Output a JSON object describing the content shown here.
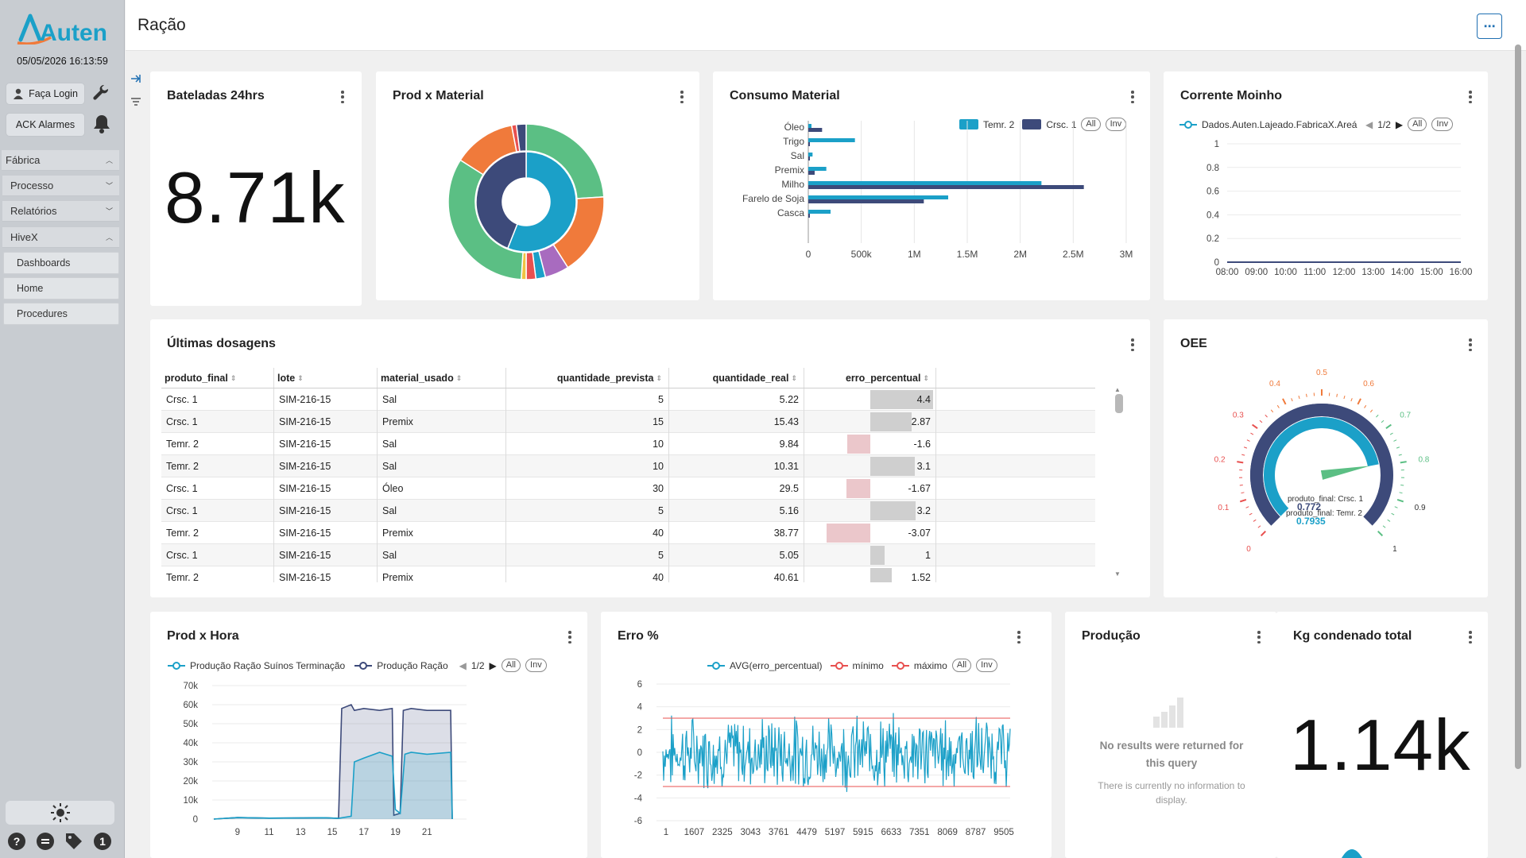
{
  "app": {
    "logo": "Auten",
    "datetime": "05/05/2026 16:13:59",
    "login_label": "Faça Login",
    "ack_label": "ACK Alarmes",
    "page_title": "Ração",
    "nav": [
      {
        "label": "Fábrica"
      },
      {
        "label": "Processo"
      },
      {
        "label": "Relatórios"
      },
      {
        "label": "HiveX"
      }
    ],
    "hivex_children": [
      "Dashboards",
      "Home",
      "Procedures"
    ],
    "footer_badge": "1"
  },
  "panels": {
    "bateladas": {
      "title": "Bateladas 24hrs",
      "value": "8.71k"
    },
    "prod_material": {
      "title": "Prod x Material"
    },
    "consumo": {
      "title": "Consumo Material",
      "legend": [
        "Temr. 2",
        "Crsc. 1"
      ],
      "all": "All",
      "inv": "Inv"
    },
    "corrente": {
      "title": "Corrente Moinho",
      "legend": "Dados.Auten.Lajeado.FabricaX.Areá",
      "page": "1/2",
      "all": "All",
      "inv": "Inv"
    },
    "ultimas": {
      "title": "Últimas dosagens"
    },
    "oee": {
      "title": "OEE",
      "label1": "produto_final: Crsc. 1",
      "val1": "0.772",
      "label2": "produto_final: Temr. 2",
      "val2": "0.7935"
    },
    "prod_hora": {
      "title": "Prod x Hora",
      "legend": [
        "Produção Ração Suínos Terminação",
        "Produção Ração"
      ],
      "page": "1/2",
      "all": "All",
      "inv": "Inv"
    },
    "erro": {
      "title": "Erro %",
      "legend": [
        "AVG(erro_percentual)",
        "mínimo",
        "máximo"
      ],
      "all": "All",
      "inv": "Inv"
    },
    "producao": {
      "title": "Produção",
      "nores": "No results were returned for this query",
      "nores2": "There is currently no information to display."
    },
    "kg": {
      "title": "Kg condenado total",
      "value": "1.14k"
    }
  },
  "table": {
    "columns": [
      "produto_final",
      "lote",
      "material_usado",
      "quantidade_prevista",
      "quantidade_real",
      "erro_percentual"
    ],
    "rows": [
      [
        "Crsc. 1",
        "SIM-216-15",
        "Sal",
        "5",
        "5.22",
        "4.4"
      ],
      [
        "Crsc. 1",
        "SIM-216-15",
        "Premix",
        "15",
        "15.43",
        "2.87"
      ],
      [
        "Temr. 2",
        "SIM-216-15",
        "Sal",
        "10",
        "9.84",
        "-1.6"
      ],
      [
        "Temr. 2",
        "SIM-216-15",
        "Sal",
        "10",
        "10.31",
        "3.1"
      ],
      [
        "Crsc. 1",
        "SIM-216-15",
        "Óleo",
        "30",
        "29.5",
        "-1.67"
      ],
      [
        "Crsc. 1",
        "SIM-216-15",
        "Sal",
        "5",
        "5.16",
        "3.2"
      ],
      [
        "Temr. 2",
        "SIM-216-15",
        "Premix",
        "40",
        "38.77",
        "-3.07"
      ],
      [
        "Crsc. 1",
        "SIM-216-15",
        "Sal",
        "5",
        "5.05",
        "1"
      ],
      [
        "Temr. 2",
        "SIM-216-15",
        "Premix",
        "40",
        "40.61",
        "1.52"
      ]
    ]
  },
  "chart_data": [
    {
      "type": "pie",
      "title": "Prod x Material",
      "note": "sunburst",
      "inner": [
        {
          "value": 0.56,
          "color": "#1ba0c8"
        },
        {
          "value": 0.44,
          "color": "#3d4a7a"
        }
      ],
      "outer": [
        {
          "value": 0.24,
          "color": "#5bbf84"
        },
        {
          "value": 0.17,
          "color": "#f07a3b"
        },
        {
          "value": 0.05,
          "color": "#a86bbf"
        },
        {
          "value": 0.02,
          "color": "#1ba0c8"
        },
        {
          "value": 0.02,
          "color": "#e8504f"
        },
        {
          "value": 0.01,
          "color": "#efc342"
        },
        {
          "value": 0.33,
          "color": "#5bbf84"
        },
        {
          "value": 0.13,
          "color": "#f07a3b"
        },
        {
          "value": 0.01,
          "color": "#e8504f"
        },
        {
          "value": 0.02,
          "color": "#3d4a7a"
        }
      ]
    },
    {
      "type": "bar",
      "orientation": "horizontal",
      "title": "Consumo Material",
      "categories": [
        "Óleo",
        "Trigo",
        "Sal",
        "Premix",
        "Milho",
        "Farelo de Soja",
        "Casca"
      ],
      "series": [
        {
          "name": "Temr. 2",
          "color": "#1ba0c8",
          "values": [
            30000,
            440000,
            40000,
            170000,
            2200000,
            1320000,
            210000
          ]
        },
        {
          "name": "Crsc. 1",
          "color": "#3d4a7a",
          "values": [
            130000,
            15000,
            15000,
            60000,
            2600000,
            1090000,
            15000
          ]
        }
      ],
      "xticks": [
        "0",
        "500k",
        "1M",
        "1.5M",
        "2M",
        "2.5M",
        "3M"
      ],
      "xlim": [
        0,
        3000000
      ]
    },
    {
      "type": "line",
      "title": "Corrente Moinho",
      "x": [
        "08:00",
        "09:00",
        "10:00",
        "11:00",
        "12:00",
        "13:00",
        "14:00",
        "15:00",
        "16:00"
      ],
      "yticks": [
        "0",
        "0.2",
        "0.4",
        "0.6",
        "0.8",
        "1"
      ],
      "ylim": [
        0,
        1
      ],
      "series": [
        {
          "name": "Dados.Auten.Lajeado.FabricaX.Areá",
          "values": [
            0,
            0,
            0,
            0,
            0,
            0,
            0,
            0,
            0
          ]
        }
      ]
    },
    {
      "type": "gauge",
      "title": "OEE",
      "ticks": [
        "0",
        "0.1",
        "0.2",
        "0.3",
        "0.4",
        "0.5",
        "0.6",
        "0.7",
        "0.8",
        "0.9",
        "1"
      ],
      "values": [
        0.772,
        0.7935
      ]
    },
    {
      "type": "area",
      "title": "Prod x Hora",
      "xticks": [
        "9",
        "11",
        "13",
        "15",
        "17",
        "19",
        "21"
      ],
      "yticks": [
        "0",
        "10k",
        "20k",
        "30k",
        "40k",
        "50k",
        "60k",
        "70k"
      ],
      "ylim": [
        0,
        70000
      ],
      "series": [
        {
          "name": "Produção Ração Suínos Terminação",
          "color": "#1ba0c8",
          "x": [
            7.5,
            9,
            11,
            13,
            14.5,
            15.4,
            16.2,
            16.4,
            17,
            18,
            18.8,
            19,
            19.3,
            19.6,
            20,
            21,
            22.5,
            22.6
          ],
          "values": [
            0,
            800,
            500,
            600,
            700,
            400,
            1500,
            30000,
            32000,
            35000,
            33000,
            5000,
            3000,
            34000,
            35000,
            34000,
            35000,
            0
          ]
        },
        {
          "name": "Produção Ração",
          "color": "#3d4a7a",
          "x": [
            7.5,
            9,
            11,
            13,
            14.5,
            15.4,
            15.6,
            16.2,
            16.4,
            17,
            18,
            18.8,
            18.9,
            19.3,
            19.5,
            20,
            21,
            22.5,
            22.6
          ],
          "values": [
            0,
            800,
            500,
            600,
            700,
            400,
            58000,
            60000,
            57000,
            58000,
            57000,
            58000,
            2000,
            3000,
            57000,
            58000,
            57000,
            57000,
            0
          ]
        }
      ]
    },
    {
      "type": "line",
      "title": "Erro %",
      "xticks": [
        "1",
        "1607",
        "2325",
        "3043",
        "3761",
        "4479",
        "5197",
        "5915",
        "6633",
        "7351",
        "8069",
        "8787",
        "9505"
      ],
      "yticks": [
        "-6",
        "-4",
        "-2",
        "0",
        "2",
        "4",
        "6"
      ],
      "ylim": [
        -6,
        6
      ],
      "series": [
        {
          "name": "AVG(erro_percentual)",
          "color": "#1ba0c8",
          "note": "noise between -4 and 4"
        },
        {
          "name": "mínimo",
          "color": "#e8504f",
          "values": [
            -3
          ]
        },
        {
          "name": "máximo",
          "color": "#e8504f",
          "values": [
            3
          ]
        }
      ]
    }
  ]
}
